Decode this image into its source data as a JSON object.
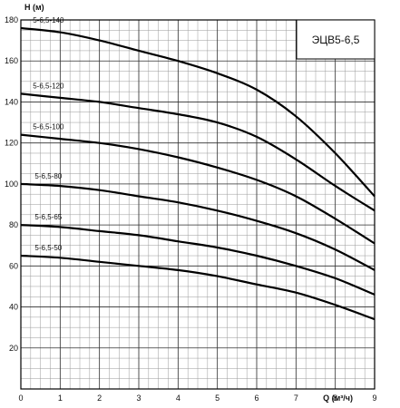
{
  "chart_data": {
    "type": "line",
    "title": "ЭЦВ5-6,5",
    "xlabel": "Q (м³/ч)",
    "ylabel": "H (м)",
    "xlim": [
      0,
      9
    ],
    "ylim": [
      0,
      180
    ],
    "x_ticks": [
      0,
      1,
      2,
      3,
      4,
      5,
      6,
      7,
      8,
      9
    ],
    "y_ticks": [
      20,
      40,
      60,
      80,
      100,
      120,
      140,
      160,
      180
    ],
    "grid": true,
    "x": [
      0,
      1,
      2,
      3,
      4,
      5,
      6,
      7,
      8,
      9
    ],
    "series": [
      {
        "name": "5-6,5-140",
        "values": [
          176,
          174,
          170,
          165,
          160,
          154,
          146,
          133,
          115,
          94
        ]
      },
      {
        "name": "5-6,5-120",
        "values": [
          144,
          142,
          140,
          137,
          134,
          130,
          123,
          112,
          99,
          87
        ]
      },
      {
        "name": "5-6,5-100",
        "values": [
          124,
          122,
          120,
          117,
          113,
          108,
          102,
          94,
          83,
          71
        ]
      },
      {
        "name": "5-6,5-80",
        "values": [
          100,
          99,
          97,
          94,
          91,
          87,
          82,
          76,
          68,
          58
        ]
      },
      {
        "name": "5-6,5-65",
        "values": [
          80,
          79,
          77,
          75,
          72,
          69,
          65,
          60,
          54,
          46
        ]
      },
      {
        "name": "5-6,5-50",
        "values": [
          65,
          64,
          62,
          60,
          58,
          55,
          51,
          47,
          41,
          34
        ]
      }
    ]
  }
}
